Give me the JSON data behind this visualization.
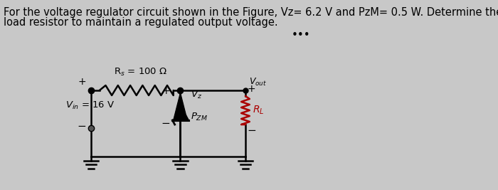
{
  "title_line1": "For the voltage regulator circuit shown in the Figure, Vz= 6.2 V and PzM= 0.5 W. Determine the maximum",
  "title_line2": "load resistor to maintain a regulated output voltage.",
  "rs_label": "R$_s$ = 100 Ω",
  "vin_label": "$V_{in}$ = 16 V",
  "vz_label": "$V_z$",
  "pzm_label": "$P_{ZM}$",
  "vout_label": "$V_{out}$",
  "rl_label": "$R_L$",
  "bg_color": "#c8c8c8",
  "wire_color": "#000000",
  "resistor_color": "#000000",
  "zener_color": "#000000",
  "rl_color": "#aa0000",
  "text_color": "#000000",
  "dots": "•••",
  "title_fontsize": 10.5,
  "label_fontsize": 9.5
}
